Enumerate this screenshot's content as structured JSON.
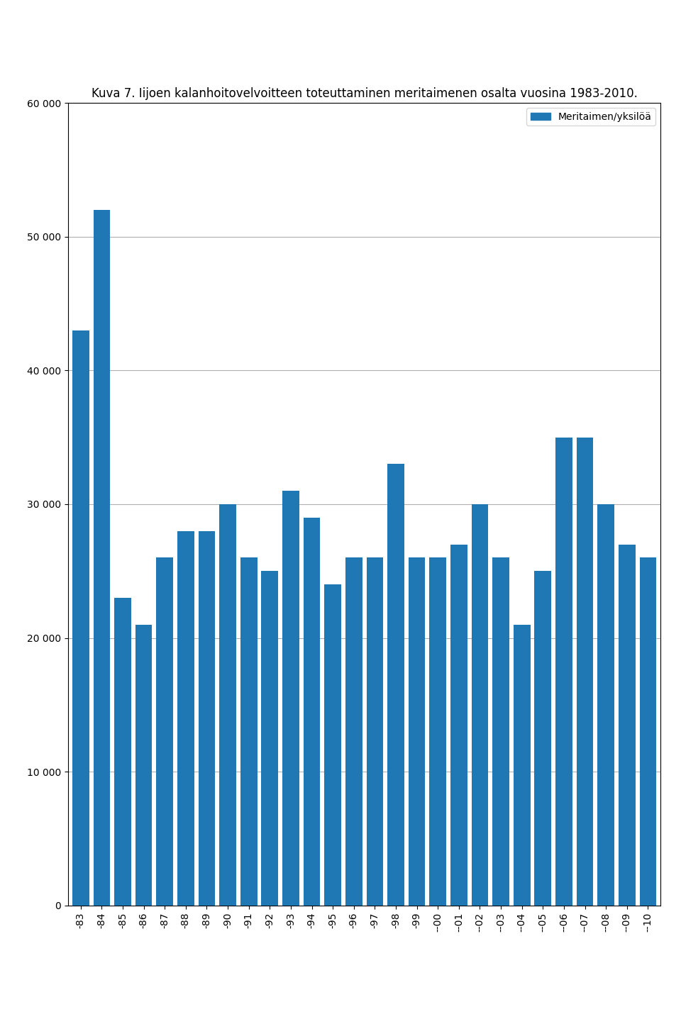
{
  "chart_data": {
    "type": "bar",
    "title": "Kuva 7. Iijoen kalanhoitovelvoitteen toteuttaminen meritaimenen osalta vuosina 1983-2010.",
    "categories": [
      "-83",
      "-84",
      "-85",
      "-86",
      "-87",
      "-88",
      "-89",
      "-90",
      "-91",
      "-92",
      "-93",
      "-94",
      "-95",
      "-96",
      "-97",
      "-98",
      "-99",
      "--00",
      "--01",
      "--02",
      "--03",
      "--04",
      "--05",
      "--06",
      "--07",
      "--08",
      "--09",
      "--10"
    ],
    "series": [
      {
        "name": "Meritaimen/yksilöä",
        "values": [
          43000,
          52000,
          23000,
          21000,
          26000,
          28000,
          28000,
          30000,
          26000,
          25000,
          31000,
          29000,
          24000,
          26000,
          26000,
          33000,
          26000,
          26000,
          27000,
          30000,
          26000,
          21000,
          25000,
          35000,
          35000,
          30000,
          27000,
          26000
        ]
      }
    ],
    "ylim": [
      0,
      60000
    ],
    "yticks": [
      0,
      {
        "value": 10000,
        "label": "10 000"
      },
      {
        "value": 20000,
        "label": "20 000"
      },
      {
        "value": 30000,
        "label": "30 000"
      },
      {
        "value": 40000,
        "label": "40 000"
      },
      {
        "value": 50000,
        "label": "50 000"
      },
      {
        "value": 60000,
        "label": "60 000"
      }
    ],
    "grid": true,
    "legend": "upper right"
  }
}
